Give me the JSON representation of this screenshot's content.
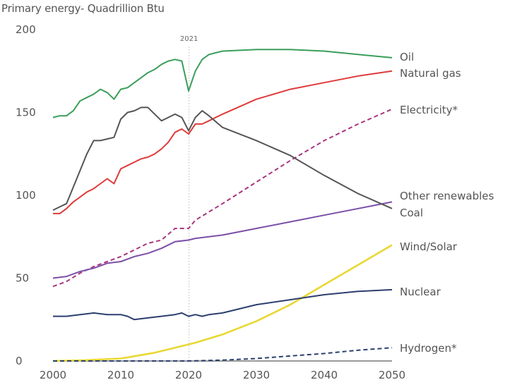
{
  "chart_data": {
    "type": "line",
    "title": "",
    "subtitle": "Primary energy- Quadrillion Btu",
    "xlabel": "",
    "ylabel": "Primary energy- Quadrillion Btu",
    "xlim": [
      2000,
      2050
    ],
    "ylim": [
      0,
      200
    ],
    "x_ticks": [
      2000,
      2010,
      2020,
      2030,
      2040,
      2050
    ],
    "y_ticks": [
      0,
      50,
      100,
      150,
      200
    ],
    "grid": false,
    "legend": "right-inline",
    "annotations": [
      {
        "label": "2021",
        "x": 2021,
        "style": "dotted-vertical-line"
      }
    ],
    "series": [
      {
        "name": "Oil",
        "color": "#3a9e5a",
        "dashed": false,
        "x": [
          2000,
          2001,
          2002,
          2003,
          2004,
          2005,
          2006,
          2007,
          2008,
          2009,
          2010,
          2011,
          2012,
          2013,
          2014,
          2015,
          2016,
          2017,
          2018,
          2019,
          2020,
          2021,
          2022,
          2023,
          2025,
          2030,
          2035,
          2040,
          2045,
          2050
        ],
        "values": [
          147,
          148,
          148,
          151,
          157,
          159,
          161,
          164,
          162,
          158,
          164,
          165,
          168,
          171,
          174,
          176,
          179,
          181,
          182,
          181,
          163,
          175,
          182,
          185,
          187,
          188,
          188,
          187,
          185,
          183
        ]
      },
      {
        "name": "Natural gas",
        "color": "#e03a3a",
        "dashed": false,
        "x": [
          2000,
          2001,
          2002,
          2003,
          2004,
          2005,
          2006,
          2007,
          2008,
          2009,
          2010,
          2011,
          2012,
          2013,
          2014,
          2015,
          2016,
          2017,
          2018,
          2019,
          2020,
          2021,
          2022,
          2023,
          2025,
          2030,
          2035,
          2040,
          2045,
          2050
        ],
        "values": [
          89,
          89,
          92,
          96,
          99,
          102,
          104,
          107,
          110,
          107,
          116,
          118,
          120,
          122,
          123,
          125,
          128,
          132,
          138,
          140,
          137,
          143,
          143,
          145,
          149,
          158,
          164,
          168,
          172,
          175
        ]
      },
      {
        "name": "Electricity*",
        "color": "#a8357e",
        "dashed": true,
        "x": [
          2000,
          2002,
          2004,
          2006,
          2008,
          2010,
          2012,
          2014,
          2016,
          2018,
          2020,
          2021,
          2025,
          2030,
          2035,
          2040,
          2045,
          2050
        ],
        "values": [
          45,
          48,
          53,
          57,
          60,
          63,
          67,
          71,
          73,
          80,
          80,
          85,
          95,
          108,
          121,
          133,
          143,
          152
        ]
      },
      {
        "name": "Other renewables",
        "color": "#7b4fa8",
        "dashed": false,
        "x": [
          2000,
          2002,
          2004,
          2006,
          2008,
          2010,
          2012,
          2014,
          2016,
          2018,
          2020,
          2021,
          2025,
          2030,
          2035,
          2040,
          2045,
          2050
        ],
        "values": [
          50,
          51,
          54,
          56,
          59,
          60,
          63,
          65,
          68,
          72,
          73,
          74,
          76,
          80,
          84,
          88,
          92,
          96
        ]
      },
      {
        "name": "Coal",
        "color": "#555555",
        "dashed": false,
        "x": [
          2000,
          2001,
          2002,
          2003,
          2004,
          2005,
          2006,
          2007,
          2008,
          2009,
          2010,
          2011,
          2012,
          2013,
          2014,
          2015,
          2016,
          2017,
          2018,
          2019,
          2020,
          2021,
          2022,
          2023,
          2025,
          2030,
          2035,
          2040,
          2045,
          2050
        ],
        "values": [
          91,
          93,
          95,
          105,
          115,
          125,
          133,
          133,
          134,
          135,
          146,
          150,
          151,
          153,
          153,
          149,
          145,
          147,
          149,
          147,
          139,
          147,
          151,
          148,
          141,
          133,
          124,
          112,
          101,
          92
        ]
      },
      {
        "name": "Wind/Solar",
        "color": "#e8d832",
        "dashed": false,
        "x": [
          2000,
          2005,
          2010,
          2015,
          2020,
          2021,
          2025,
          2030,
          2035,
          2040,
          2045,
          2050
        ],
        "values": [
          0,
          0.5,
          1.5,
          5,
          10,
          11,
          16,
          24,
          34,
          46,
          58,
          70
        ]
      },
      {
        "name": "Nuclear",
        "color": "#2b3f6e",
        "dashed": false,
        "x": [
          2000,
          2002,
          2004,
          2006,
          2008,
          2010,
          2011,
          2012,
          2014,
          2016,
          2018,
          2019,
          2020,
          2021,
          2022,
          2023,
          2025,
          2030,
          2035,
          2040,
          2045,
          2050
        ],
        "values": [
          27,
          27,
          28,
          29,
          28,
          28,
          27,
          25,
          26,
          27,
          28,
          29,
          27,
          28,
          27,
          28,
          29,
          34,
          37,
          40,
          42,
          43
        ]
      },
      {
        "name": "Hydrogen*",
        "color": "#2b3f6e",
        "dashed": true,
        "x": [
          2000,
          2010,
          2020,
          2025,
          2030,
          2035,
          2040,
          2045,
          2050
        ],
        "values": [
          0,
          0,
          0,
          0.5,
          1.5,
          3,
          4.5,
          6.5,
          8
        ]
      }
    ]
  }
}
